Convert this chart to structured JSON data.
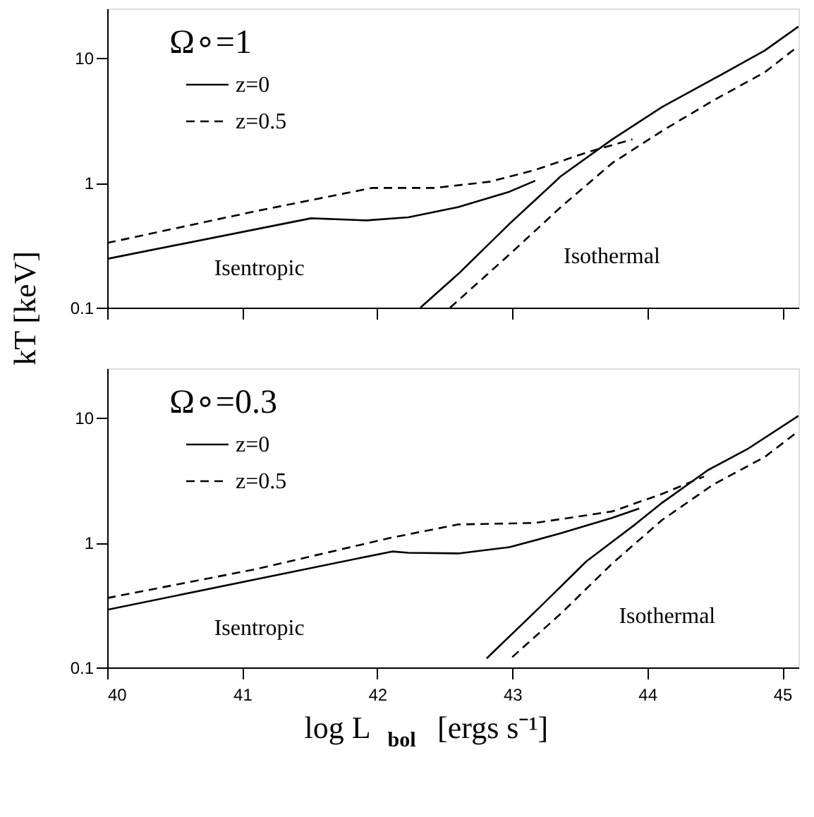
{
  "chart_data": [
    {
      "type": "line",
      "ylabel": "kT [keV]",
      "log": "y",
      "xlim": [
        40,
        45.12
      ],
      "ylim": [
        0.1,
        25
      ],
      "xticks": [
        40,
        41,
        42,
        43,
        44,
        45
      ],
      "yticks": [
        0.1,
        1,
        10
      ],
      "tick_labels": "y",
      "legend": "top left",
      "grid": false,
      "marker": "none",
      "annotations": [
        "Ω∘=1",
        "Isentropic",
        "Isothermal"
      ],
      "series": [
        {
          "name": "z=0",
          "color": "#000000",
          "line_style": "solid",
          "x": [
            40,
            41.51,
            41.92,
            42.23,
            42.6,
            42.98,
            43.17,
            null,
            42.32,
            42.6,
            42.98,
            43.36,
            43.74,
            44.11,
            44.49,
            44.87,
            45.12
          ],
          "values": [
            0.246,
            0.52,
            0.5,
            0.53,
            0.64,
            0.85,
            1.04,
            null,
            0.1,
            0.186,
            0.47,
            1.13,
            2.23,
            4.06,
            6.8,
            11.5,
            17.9
          ]
        },
        {
          "name": "z=0.5",
          "color": "#000000",
          "line_style": "dashed",
          "x": [
            40,
            41.09,
            41.96,
            42.42,
            42.83,
            43.17,
            43.55,
            43.89,
            null,
            42.54,
            42.98,
            43.36,
            43.74,
            44.11,
            44.49,
            44.87,
            45.12
          ],
          "values": [
            0.33,
            0.59,
            0.91,
            0.91,
            1.02,
            1.27,
            1.75,
            2.23,
            null,
            0.1,
            0.267,
            0.64,
            1.44,
            2.61,
            4.58,
            7.7,
            12.5
          ]
        }
      ]
    },
    {
      "type": "line",
      "xlabel": "log L$_{bol}$ [ergs s⁻¹]",
      "log": "y",
      "xlim": [
        40,
        45.12
      ],
      "ylim": [
        0.1,
        25
      ],
      "xticks": [
        40,
        41,
        42,
        43,
        44,
        45
      ],
      "yticks": [
        0.1,
        1,
        10
      ],
      "legend": "top left",
      "grid": false,
      "marker": "none",
      "annotations": [
        "Ω∘=0.3",
        "Isentropic",
        "Isothermal"
      ],
      "series": [
        {
          "name": "z=0",
          "color": "#000000",
          "line_style": "solid",
          "x": [
            40,
            42.11,
            42.23,
            42.6,
            42.98,
            43.36,
            43.74,
            43.94,
            null,
            42.81,
            43.17,
            43.55,
            43.91,
            44.11,
            44.45,
            44.75,
            45.12
          ],
          "values": [
            0.29,
            0.85,
            0.83,
            0.82,
            0.92,
            1.19,
            1.58,
            1.88,
            null,
            0.118,
            0.28,
            0.71,
            1.4,
            2.09,
            3.82,
            5.7,
            10.4
          ]
        },
        {
          "name": "z=0.5",
          "color": "#000000",
          "line_style": "dashed",
          "x": [
            40,
            41.09,
            42.11,
            42.6,
            43.17,
            43.74,
            44.11,
            44.42,
            null,
            43.0,
            43.36,
            43.74,
            44.11,
            44.49,
            44.87,
            45.12
          ],
          "values": [
            0.36,
            0.61,
            1.1,
            1.4,
            1.44,
            1.78,
            2.46,
            3.39,
            null,
            0.121,
            0.27,
            0.68,
            1.52,
            2.93,
            4.86,
            7.85
          ]
        }
      ]
    }
  ]
}
